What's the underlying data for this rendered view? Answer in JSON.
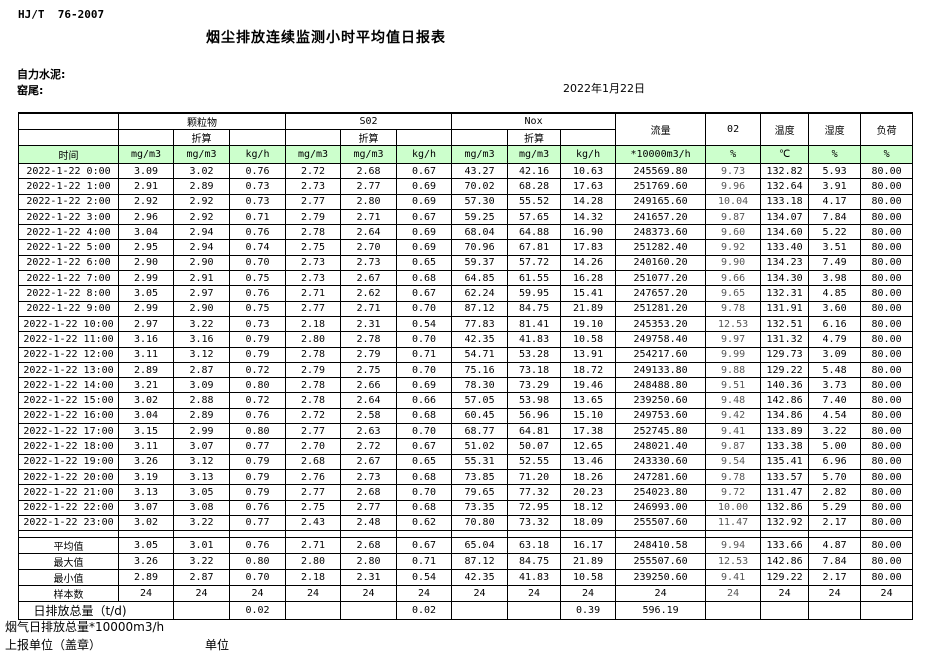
{
  "header": {
    "doc_code": "HJ/T  76-2007",
    "title": "烟尘排放连续监测小时平均值日报表",
    "company": "自力水泥:",
    "location": "窑尾:",
    "date": "2022年1月22日"
  },
  "table": {
    "groups": {
      "pm": "颗粒物",
      "so2": "S02",
      "nox": "Nox"
    },
    "converted_label": "折算",
    "flow": "流量",
    "o2": "02",
    "temp": "温度",
    "humidity": "湿度",
    "load": "负荷",
    "time_label": "时间",
    "units": [
      "mg/m3",
      "mg/m3",
      "kg/h",
      "mg/m3",
      "mg/m3",
      "kg/h",
      "mg/m3",
      "mg/m3",
      "kg/h",
      "*10000m3/h",
      "%",
      "℃",
      "%",
      "%"
    ],
    "rows": [
      [
        "2022-1-22 0:00",
        "3.09",
        "3.02",
        "0.76",
        "2.72",
        "2.68",
        "0.67",
        "43.27",
        "42.16",
        "10.63",
        "245569.80",
        "9.73",
        "132.82",
        "5.93",
        "80.00"
      ],
      [
        "2022-1-22 1:00",
        "2.91",
        "2.89",
        "0.73",
        "2.73",
        "2.77",
        "0.69",
        "70.02",
        "68.28",
        "17.63",
        "251769.60",
        "9.96",
        "132.64",
        "3.91",
        "80.00"
      ],
      [
        "2022-1-22 2:00",
        "2.92",
        "2.92",
        "0.73",
        "2.77",
        "2.80",
        "0.69",
        "57.30",
        "55.52",
        "14.28",
        "249165.60",
        "10.04",
        "133.18",
        "4.17",
        "80.00"
      ],
      [
        "2022-1-22 3:00",
        "2.96",
        "2.92",
        "0.71",
        "2.79",
        "2.71",
        "0.67",
        "59.25",
        "57.65",
        "14.32",
        "241657.20",
        "9.87",
        "134.07",
        "7.84",
        "80.00"
      ],
      [
        "2022-1-22 4:00",
        "3.04",
        "2.94",
        "0.76",
        "2.78",
        "2.64",
        "0.69",
        "68.04",
        "64.88",
        "16.90",
        "248373.60",
        "9.60",
        "134.60",
        "5.22",
        "80.00"
      ],
      [
        "2022-1-22 5:00",
        "2.95",
        "2.94",
        "0.74",
        "2.75",
        "2.70",
        "0.69",
        "70.96",
        "67.81",
        "17.83",
        "251282.40",
        "9.92",
        "133.40",
        "3.51",
        "80.00"
      ],
      [
        "2022-1-22 6:00",
        "2.90",
        "2.90",
        "0.70",
        "2.73",
        "2.73",
        "0.65",
        "59.37",
        "57.72",
        "14.26",
        "240160.20",
        "9.90",
        "134.23",
        "7.49",
        "80.00"
      ],
      [
        "2022-1-22 7:00",
        "2.99",
        "2.91",
        "0.75",
        "2.73",
        "2.67",
        "0.68",
        "64.85",
        "61.55",
        "16.28",
        "251077.20",
        "9.66",
        "134.30",
        "3.98",
        "80.00"
      ],
      [
        "2022-1-22 8:00",
        "3.05",
        "2.97",
        "0.76",
        "2.71",
        "2.62",
        "0.67",
        "62.24",
        "59.95",
        "15.41",
        "247657.20",
        "9.65",
        "132.31",
        "4.85",
        "80.00"
      ],
      [
        "2022-1-22 9:00",
        "2.99",
        "2.90",
        "0.75",
        "2.77",
        "2.71",
        "0.70",
        "87.12",
        "84.75",
        "21.89",
        "251281.20",
        "9.78",
        "131.91",
        "3.60",
        "80.00"
      ],
      [
        "2022-1-22 10:00",
        "2.97",
        "3.22",
        "0.73",
        "2.18",
        "2.31",
        "0.54",
        "77.83",
        "81.41",
        "19.10",
        "245353.20",
        "12.53",
        "132.51",
        "6.16",
        "80.00"
      ],
      [
        "2022-1-22 11:00",
        "3.16",
        "3.16",
        "0.79",
        "2.80",
        "2.78",
        "0.70",
        "42.35",
        "41.83",
        "10.58",
        "249758.40",
        "9.97",
        "131.32",
        "4.79",
        "80.00"
      ],
      [
        "2022-1-22 12:00",
        "3.11",
        "3.12",
        "0.79",
        "2.78",
        "2.79",
        "0.71",
        "54.71",
        "53.28",
        "13.91",
        "254217.60",
        "9.99",
        "129.73",
        "3.09",
        "80.00"
      ],
      [
        "2022-1-22 13:00",
        "2.89",
        "2.87",
        "0.72",
        "2.79",
        "2.75",
        "0.70",
        "75.16",
        "73.18",
        "18.72",
        "249133.80",
        "9.88",
        "129.22",
        "5.48",
        "80.00"
      ],
      [
        "2022-1-22 14:00",
        "3.21",
        "3.09",
        "0.80",
        "2.78",
        "2.66",
        "0.69",
        "78.30",
        "73.29",
        "19.46",
        "248488.80",
        "9.51",
        "140.36",
        "3.73",
        "80.00"
      ],
      [
        "2022-1-22 15:00",
        "3.02",
        "2.88",
        "0.72",
        "2.78",
        "2.64",
        "0.66",
        "57.05",
        "53.98",
        "13.65",
        "239250.60",
        "9.48",
        "142.86",
        "7.40",
        "80.00"
      ],
      [
        "2022-1-22 16:00",
        "3.04",
        "2.89",
        "0.76",
        "2.72",
        "2.58",
        "0.68",
        "60.45",
        "56.96",
        "15.10",
        "249753.60",
        "9.42",
        "134.86",
        "4.54",
        "80.00"
      ],
      [
        "2022-1-22 17:00",
        "3.15",
        "2.99",
        "0.80",
        "2.77",
        "2.63",
        "0.70",
        "68.77",
        "64.81",
        "17.38",
        "252745.80",
        "9.41",
        "133.89",
        "3.22",
        "80.00"
      ],
      [
        "2022-1-22 18:00",
        "3.11",
        "3.07",
        "0.77",
        "2.70",
        "2.72",
        "0.67",
        "51.02",
        "50.07",
        "12.65",
        "248021.40",
        "9.87",
        "133.38",
        "5.00",
        "80.00"
      ],
      [
        "2022-1-22 19:00",
        "3.26",
        "3.12",
        "0.79",
        "2.68",
        "2.67",
        "0.65",
        "55.31",
        "52.55",
        "13.46",
        "243330.60",
        "9.54",
        "135.41",
        "6.96",
        "80.00"
      ],
      [
        "2022-1-22 20:00",
        "3.19",
        "3.13",
        "0.79",
        "2.76",
        "2.73",
        "0.68",
        "73.85",
        "71.20",
        "18.26",
        "247281.60",
        "9.78",
        "133.57",
        "5.70",
        "80.00"
      ],
      [
        "2022-1-22 21:00",
        "3.13",
        "3.05",
        "0.79",
        "2.77",
        "2.68",
        "0.70",
        "79.65",
        "77.32",
        "20.23",
        "254023.80",
        "9.72",
        "131.47",
        "2.82",
        "80.00"
      ],
      [
        "2022-1-22 22:00",
        "3.07",
        "3.08",
        "0.76",
        "2.75",
        "2.77",
        "0.68",
        "73.35",
        "72.95",
        "18.12",
        "246993.00",
        "10.00",
        "132.86",
        "5.29",
        "80.00"
      ],
      [
        "2022-1-22 23:00",
        "3.02",
        "3.22",
        "0.77",
        "2.43",
        "2.48",
        "0.62",
        "70.80",
        "73.32",
        "18.09",
        "255507.60",
        "11.47",
        "132.92",
        "2.17",
        "80.00"
      ]
    ],
    "summary": [
      {
        "label": "平均值",
        "values": [
          "3.05",
          "3.01",
          "0.76",
          "2.71",
          "2.68",
          "0.67",
          "65.04",
          "63.18",
          "16.17",
          "248410.58",
          "9.94",
          "133.66",
          "4.87",
          "80.00"
        ]
      },
      {
        "label": "最大值",
        "values": [
          "3.26",
          "3.22",
          "0.80",
          "2.80",
          "2.80",
          "0.71",
          "87.12",
          "84.75",
          "21.89",
          "255507.60",
          "12.53",
          "142.86",
          "7.84",
          "80.00"
        ]
      },
      {
        "label": "最小值",
        "values": [
          "2.89",
          "2.87",
          "0.70",
          "2.18",
          "2.31",
          "0.54",
          "42.35",
          "41.83",
          "10.58",
          "239250.60",
          "9.41",
          "129.22",
          "2.17",
          "80.00"
        ]
      },
      {
        "label": "样本数",
        "values": [
          "24",
          "24",
          "24",
          "24",
          "24",
          "24",
          "24",
          "24",
          "24",
          "24",
          "24",
          "24",
          "24",
          "24"
        ]
      }
    ],
    "daily_total": {
      "label": "日排放总量（t/d)",
      "values": [
        "",
        "0.02",
        "",
        "",
        "0.02",
        "",
        "",
        "0.39",
        "596.19",
        "",
        "",
        "",
        ""
      ]
    }
  },
  "footer": {
    "flue_gas_total": "烟气日排放总量*10000m3/h",
    "report_unit": "上报单位（盖章）",
    "unit": "单位"
  },
  "colors": {
    "header_green": "#ccffcc"
  }
}
